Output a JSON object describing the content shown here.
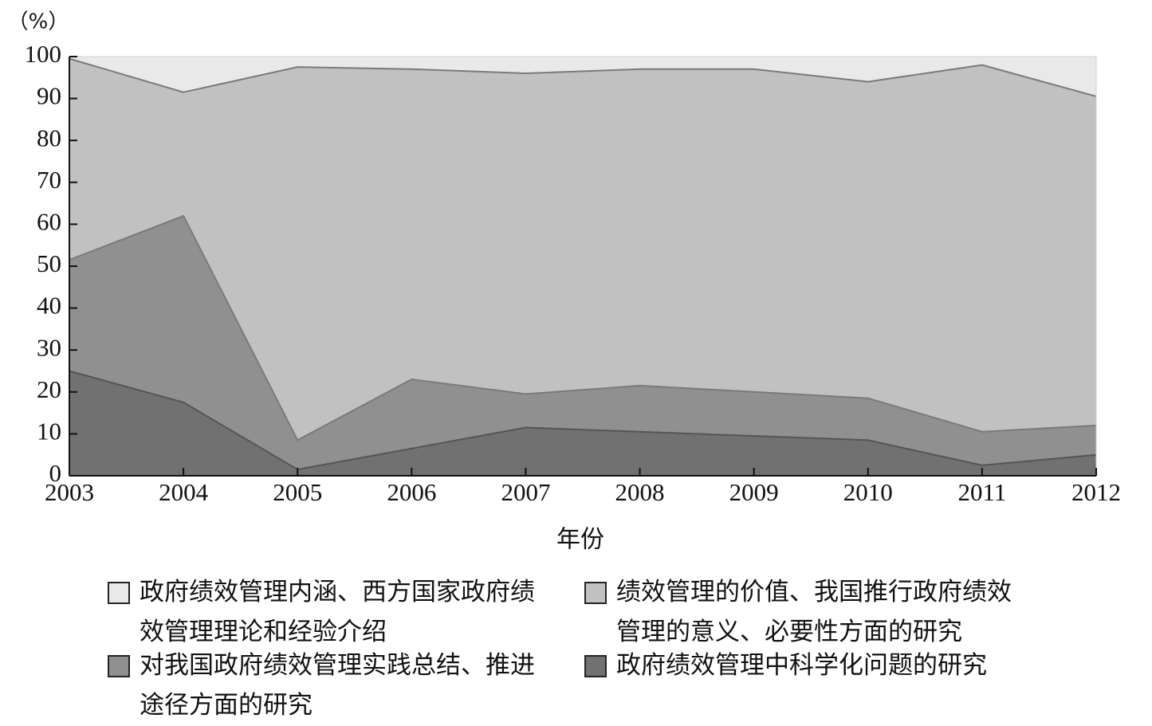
{
  "chart_data": {
    "type": "stacked-area",
    "y_label": "（%）",
    "x_label": "年份",
    "x": [
      2003,
      2004,
      2005,
      2006,
      2007,
      2008,
      2009,
      2010,
      2011,
      2012
    ],
    "xlim": [
      2003,
      2012
    ],
    "xticks": [
      2003,
      2004,
      2005,
      2006,
      2007,
      2008,
      2009,
      2010,
      2011,
      2012
    ],
    "ylim": [
      0,
      100
    ],
    "yticks": [
      0,
      10,
      20,
      30,
      40,
      50,
      60,
      70,
      80,
      90,
      100
    ],
    "series": [
      {
        "name": "政府绩效管理内涵、西方国家政府绩效管理理论和经验介绍",
        "color": "#e9e9e9",
        "values": [
          0.5,
          8.5,
          2.5,
          3,
          4,
          3,
          3,
          6,
          2,
          9.5
        ]
      },
      {
        "name": "绩效管理的价值、我国推行政府绩效管理的意义、必要性方面的研究",
        "color": "#c1c1c1",
        "values": [
          48,
          29.5,
          89,
          74,
          76.5,
          75.5,
          77,
          75.5,
          87.5,
          78.5
        ]
      },
      {
        "name": "对我国政府绩效管理实践总结、推进途径方面的研究",
        "color": "#909090",
        "values": [
          26.5,
          44.5,
          7,
          16.5,
          8,
          11,
          10.5,
          10,
          8,
          7
        ]
      },
      {
        "name": "政府绩效管理中科学化问题的研究",
        "color": "#717171",
        "values": [
          25,
          17.5,
          1.5,
          6.5,
          11.5,
          10.5,
          9.5,
          8.5,
          2.5,
          5
        ]
      }
    ]
  }
}
